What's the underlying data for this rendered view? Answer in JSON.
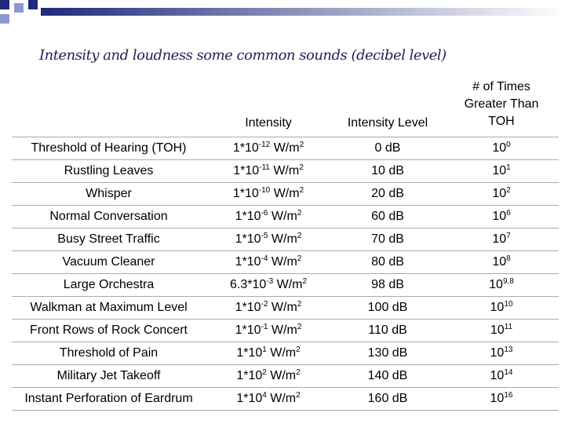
{
  "title": "Intensity and loudness some common sounds (decibel level)",
  "table": {
    "header": [
      "Intensity",
      "Intensity Level",
      "# of Times Greater Than TOH"
    ],
    "rows": [
      {
        "source": "Threshold of Hearing (TOH)",
        "intensity": {
          "base": "1*10",
          "exp": "-12",
          "unit": "W/m",
          "unit_exp": "2"
        },
        "level": "0 dB",
        "times": {
          "base": "10",
          "exp": "0"
        }
      },
      {
        "source": "Rustling Leaves",
        "intensity": {
          "base": "1*10",
          "exp": "-11",
          "unit": "W/m",
          "unit_exp": "2"
        },
        "level": "10 dB",
        "times": {
          "base": "10",
          "exp": "1"
        }
      },
      {
        "source": "Whisper",
        "intensity": {
          "base": "1*10",
          "exp": "-10",
          "unit": "W/m",
          "unit_exp": "2"
        },
        "level": "20 dB",
        "times": {
          "base": "10",
          "exp": "2"
        }
      },
      {
        "source": "Normal Conversation",
        "intensity": {
          "base": "1*10",
          "exp": "-6",
          "unit": "W/m",
          "unit_exp": "2"
        },
        "level": "60 dB",
        "times": {
          "base": "10",
          "exp": "6"
        }
      },
      {
        "source": "Busy Street Traffic",
        "intensity": {
          "base": "1*10",
          "exp": "-5",
          "unit": "W/m",
          "unit_exp": "2"
        },
        "level": "70 dB",
        "times": {
          "base": "10",
          "exp": "7"
        }
      },
      {
        "source": "Vacuum Cleaner",
        "intensity": {
          "base": "1*10",
          "exp": "-4",
          "unit": "W/m",
          "unit_exp": "2"
        },
        "level": "80 dB",
        "times": {
          "base": "10",
          "exp": "8"
        }
      },
      {
        "source": "Large Orchestra",
        "intensity": {
          "base": "6.3*10",
          "exp": "-3",
          "unit": "W/m",
          "unit_exp": "2"
        },
        "level": "98 dB",
        "times": {
          "base": "10",
          "exp": "9.8"
        }
      },
      {
        "source": "Walkman at Maximum Level",
        "intensity": {
          "base": "1*10",
          "exp": "-2",
          "unit": "W/m",
          "unit_exp": "2"
        },
        "level": "100 dB",
        "times": {
          "base": "10",
          "exp": "10"
        }
      },
      {
        "source": "Front Rows of Rock Concert",
        "intensity": {
          "base": "1*10",
          "exp": "-1",
          "unit": "W/m",
          "unit_exp": "2"
        },
        "level": "110 dB",
        "times": {
          "base": "10",
          "exp": "11"
        }
      },
      {
        "source": "Threshold of Pain",
        "intensity": {
          "base": "1*10",
          "exp": "1",
          "unit": "W/m",
          "unit_exp": "2"
        },
        "level": "130 dB",
        "times": {
          "base": "10",
          "exp": "13"
        }
      },
      {
        "source": "Military Jet Takeoff",
        "intensity": {
          "base": "1*10",
          "exp": "2",
          "unit": "W/m",
          "unit_exp": "2"
        },
        "level": "140 dB",
        "times": {
          "base": "10",
          "exp": "14"
        }
      },
      {
        "source": "Instant Perforation of Eardrum",
        "intensity": {
          "base": "1*10",
          "exp": "4",
          "unit": "W/m",
          "unit_exp": "2"
        },
        "level": "160 dB",
        "times": {
          "base": "10",
          "exp": "16"
        }
      }
    ]
  }
}
